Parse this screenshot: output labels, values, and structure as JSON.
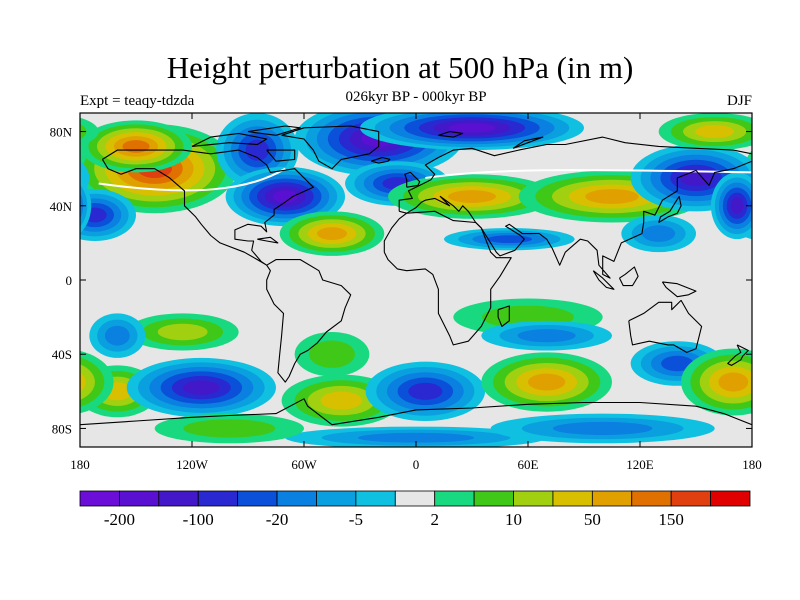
{
  "title": "Height perturbation at 500 hPa (in m)",
  "subtitle": "026kyr BP - 000kyr BP",
  "experiment_label": "Expt = teaqy-tdzda",
  "season": "DJF",
  "chart_data": {
    "type": "heatmap",
    "projection": "cylindrical equidistant",
    "variable": "500 hPa geopotential height perturbation",
    "units": "m",
    "x_range": [
      -180,
      180
    ],
    "y_range": [
      -90,
      90
    ],
    "x_ticks": [
      {
        "value": -180,
        "label": "180"
      },
      {
        "value": -120,
        "label": "120W"
      },
      {
        "value": -60,
        "label": "60W"
      },
      {
        "value": 0,
        "label": "0"
      },
      {
        "value": 60,
        "label": "60E"
      },
      {
        "value": 120,
        "label": "120E"
      },
      {
        "value": 180,
        "label": "180"
      }
    ],
    "y_ticks": [
      {
        "value": 80,
        "label": "80N"
      },
      {
        "value": 40,
        "label": "40N"
      },
      {
        "value": 0,
        "label": "0"
      },
      {
        "value": -40,
        "label": "40S"
      },
      {
        "value": -80,
        "label": "80S"
      }
    ],
    "colorbar": {
      "colors": [
        "#6a0ed8",
        "#5a10d0",
        "#4318c8",
        "#2a28d0",
        "#0a50d8",
        "#0a80e0",
        "#0aa0e0",
        "#10c0e0",
        "#e6e6e6",
        "#18d880",
        "#40c818",
        "#a0d010",
        "#d8c000",
        "#e0a000",
        "#e07000",
        "#e04010",
        "#e00000"
      ],
      "labels": [
        {
          "value": "-200",
          "boundary": 1
        },
        {
          "value": "-100",
          "boundary": 3
        },
        {
          "value": "-20",
          "boundary": 5
        },
        {
          "value": "-5",
          "boundary": 7
        },
        {
          "value": "2",
          "boundary": 9
        },
        {
          "value": "10",
          "boundary": 11
        },
        {
          "value": "50",
          "boundary": 13
        },
        {
          "value": "150",
          "boundary": 15
        }
      ]
    },
    "features": [
      {
        "lon": -140,
        "lat": 60,
        "rx": 44,
        "ry": 24,
        "value": 170
      },
      {
        "lon": -150,
        "lat": 72,
        "rx": 30,
        "ry": 14,
        "value": 120
      },
      {
        "lon": -85,
        "lat": 70,
        "rx": 22,
        "ry": 20,
        "value": -80
      },
      {
        "lon": -172,
        "lat": 35,
        "rx": 22,
        "ry": 14,
        "value": -80
      },
      {
        "lon": -70,
        "lat": 45,
        "rx": 32,
        "ry": 16,
        "value": -150
      },
      {
        "lon": -20,
        "lat": 76,
        "rx": 45,
        "ry": 20,
        "value": -180
      },
      {
        "lon": 30,
        "lat": 82,
        "rx": 60,
        "ry": 12,
        "value": -170
      },
      {
        "lon": -10,
        "lat": 52,
        "rx": 28,
        "ry": 12,
        "value": -60
      },
      {
        "lon": 30,
        "lat": 45,
        "rx": 45,
        "ry": 12,
        "value": 70
      },
      {
        "lon": 105,
        "lat": 45,
        "rx": 50,
        "ry": 14,
        "value": 80
      },
      {
        "lon": -45,
        "lat": 25,
        "rx": 28,
        "ry": 12,
        "value": 60
      },
      {
        "lon": 50,
        "lat": 22,
        "rx": 35,
        "ry": 6,
        "value": -25
      },
      {
        "lon": 150,
        "lat": 55,
        "rx": 35,
        "ry": 18,
        "value": -100
      },
      {
        "lon": 172,
        "lat": 40,
        "rx": 14,
        "ry": 18,
        "value": -120
      },
      {
        "lon": 160,
        "lat": 80,
        "rx": 30,
        "ry": 10,
        "value": 40
      },
      {
        "lon": 130,
        "lat": 25,
        "rx": 20,
        "ry": 10,
        "value": -10
      },
      {
        "lon": -160,
        "lat": -60,
        "rx": 22,
        "ry": 14,
        "value": 35
      },
      {
        "lon": -115,
        "lat": -58,
        "rx": 40,
        "ry": 16,
        "value": -110
      },
      {
        "lon": -125,
        "lat": -28,
        "rx": 30,
        "ry": 10,
        "value": 10
      },
      {
        "lon": -160,
        "lat": -30,
        "rx": 15,
        "ry": 12,
        "value": -10
      },
      {
        "lon": -40,
        "lat": -65,
        "rx": 32,
        "ry": 14,
        "value": 40
      },
      {
        "lon": -45,
        "lat": -40,
        "rx": 20,
        "ry": 12,
        "value": 8
      },
      {
        "lon": 5,
        "lat": -60,
        "rx": 32,
        "ry": 16,
        "value": -90
      },
      {
        "lon": 70,
        "lat": -55,
        "rx": 35,
        "ry": 16,
        "value": 70
      },
      {
        "lon": 140,
        "lat": -45,
        "rx": 25,
        "ry": 12,
        "value": -25
      },
      {
        "lon": 170,
        "lat": -55,
        "rx": 28,
        "ry": 18,
        "value": 80
      },
      {
        "lon": 60,
        "lat": -20,
        "rx": 40,
        "ry": 10,
        "value": 8
      },
      {
        "lon": 70,
        "lat": -30,
        "rx": 35,
        "ry": 8,
        "value": -10
      },
      {
        "lon": 0,
        "lat": -85,
        "rx": 70,
        "ry": 6,
        "value": -10
      },
      {
        "lon": 100,
        "lat": -80,
        "rx": 60,
        "ry": 8,
        "value": -10
      },
      {
        "lon": -100,
        "lat": -80,
        "rx": 40,
        "ry": 8,
        "value": 5
      }
    ]
  }
}
